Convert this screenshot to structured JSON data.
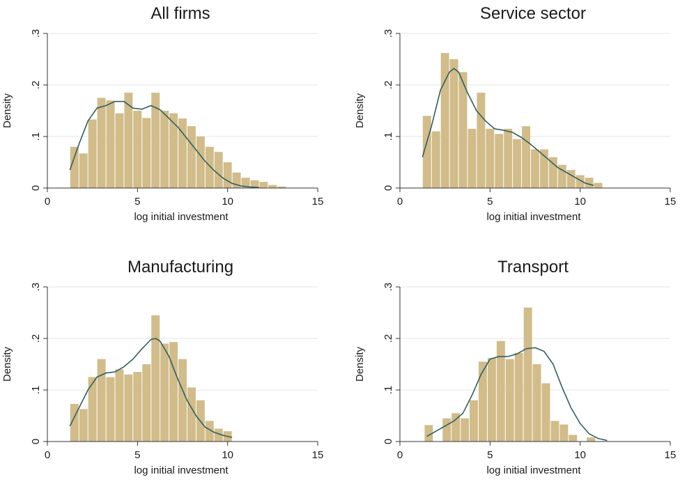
{
  "chart_data": [
    {
      "type": "bar",
      "title": "All firms",
      "xlabel": "log initial investment",
      "ylabel": "Density",
      "xlim": [
        0,
        15
      ],
      "ylim": [
        0,
        0.3
      ],
      "xticks": [
        "0",
        "5",
        "10",
        "15"
      ],
      "yticks": [
        "0",
        ".1",
        ".2",
        ".3"
      ],
      "grid": true,
      "bar_color": "#d1bc8a",
      "line_color": "#2f5f5f",
      "bins": {
        "start": 1.25,
        "width": 0.5,
        "values": [
          0.08,
          0.067,
          0.133,
          0.175,
          0.17,
          0.145,
          0.185,
          0.15,
          0.136,
          0.185,
          0.15,
          0.145,
          0.135,
          0.12,
          0.1,
          0.08,
          0.07,
          0.05,
          0.03,
          0.02,
          0.015,
          0.012,
          0.006,
          0.003
        ]
      },
      "kde": {
        "x": [
          1.25,
          1.75,
          2.25,
          2.75,
          3.25,
          3.75,
          4.25,
          4.75,
          5.25,
          5.75,
          6.25,
          6.75,
          7.25,
          7.75,
          8.25,
          8.75,
          9.25,
          9.75,
          10.25,
          10.75,
          11.25,
          11.75
        ],
        "y": [
          0.035,
          0.085,
          0.13,
          0.155,
          0.16,
          0.168,
          0.168,
          0.155,
          0.153,
          0.16,
          0.152,
          0.135,
          0.118,
          0.096,
          0.074,
          0.052,
          0.034,
          0.019,
          0.009,
          0.004,
          0.002,
          0.001
        ]
      }
    },
    {
      "type": "bar",
      "title": "Service sector",
      "xlabel": "log initial investment",
      "ylabel": "Density",
      "xlim": [
        0,
        15
      ],
      "ylim": [
        0,
        0.3
      ],
      "xticks": [
        "0",
        "5",
        "10",
        "15"
      ],
      "yticks": [
        "0",
        ".1",
        ".2",
        ".3"
      ],
      "grid": true,
      "bar_color": "#d1bc8a",
      "line_color": "#2f5f5f",
      "bins": {
        "start": 1.25,
        "width": 0.5,
        "values": [
          0.14,
          0.11,
          0.262,
          0.25,
          0.225,
          0.115,
          0.185,
          0.115,
          0.105,
          0.115,
          0.095,
          0.12,
          0.075,
          0.075,
          0.06,
          0.045,
          0.035,
          0.025,
          0.02,
          0.01
        ]
      },
      "kde": {
        "x": [
          1.25,
          1.75,
          2.25,
          2.75,
          3.0,
          3.25,
          3.75,
          4.25,
          4.75,
          5.25,
          5.75,
          6.25,
          6.75,
          7.25,
          7.75,
          8.25,
          8.75,
          9.25,
          9.75,
          10.25,
          10.75
        ],
        "y": [
          0.06,
          0.12,
          0.19,
          0.225,
          0.232,
          0.225,
          0.185,
          0.15,
          0.13,
          0.115,
          0.112,
          0.108,
          0.098,
          0.085,
          0.07,
          0.055,
          0.04,
          0.03,
          0.02,
          0.01,
          0.005
        ]
      }
    },
    {
      "type": "bar",
      "title": "Manufacturing",
      "xlabel": "log initial investment",
      "ylabel": "Density",
      "xlim": [
        0,
        15
      ],
      "ylim": [
        0,
        0.3
      ],
      "xticks": [
        "0",
        "5",
        "10",
        "15"
      ],
      "yticks": [
        "0",
        ".1",
        ".2",
        ".3"
      ],
      "grid": true,
      "bar_color": "#d1bc8a",
      "line_color": "#2f5f5f",
      "bins": {
        "start": 1.25,
        "width": 0.5,
        "values": [
          0.073,
          0.063,
          0.125,
          0.16,
          0.125,
          0.14,
          0.13,
          0.135,
          0.15,
          0.245,
          0.19,
          0.193,
          0.16,
          0.105,
          0.08,
          0.04,
          0.025,
          0.02
        ]
      },
      "kde": {
        "x": [
          1.25,
          1.75,
          2.25,
          2.75,
          3.25,
          3.75,
          4.25,
          4.75,
          5.25,
          5.75,
          6.0,
          6.25,
          6.75,
          7.25,
          7.75,
          8.25,
          8.75,
          9.25,
          9.75,
          10.25
        ],
        "y": [
          0.03,
          0.065,
          0.1,
          0.125,
          0.133,
          0.135,
          0.145,
          0.16,
          0.18,
          0.198,
          0.2,
          0.195,
          0.165,
          0.12,
          0.08,
          0.05,
          0.028,
          0.018,
          0.012,
          0.008
        ]
      }
    },
    {
      "type": "bar",
      "title": "Transport",
      "xlabel": "log initial investment",
      "ylabel": "Density",
      "xlim": [
        0,
        15
      ],
      "ylim": [
        0,
        0.3
      ],
      "xticks": [
        "0",
        "5",
        "10",
        "15"
      ],
      "yticks": [
        "0",
        ".1",
        ".2",
        ".3"
      ],
      "grid": true,
      "bar_color": "#d1bc8a",
      "line_color": "#2f5f5f",
      "bins": {
        "start": 1.35,
        "width": 0.5,
        "values": [
          0.032,
          0.0,
          0.045,
          0.055,
          0.045,
          0.08,
          0.155,
          0.162,
          0.195,
          0.16,
          0.172,
          0.26,
          0.15,
          0.113,
          0.04,
          0.033,
          0.013,
          0.0,
          0.008
        ]
      },
      "kde": {
        "x": [
          1.5,
          2.0,
          2.5,
          3.0,
          3.5,
          4.0,
          4.5,
          5.0,
          5.5,
          6.0,
          6.5,
          7.0,
          7.5,
          8.0,
          8.5,
          9.0,
          9.5,
          10.0,
          10.5,
          11.0,
          11.5
        ],
        "y": [
          0.01,
          0.02,
          0.03,
          0.04,
          0.055,
          0.09,
          0.13,
          0.16,
          0.165,
          0.165,
          0.17,
          0.18,
          0.182,
          0.175,
          0.15,
          0.105,
          0.065,
          0.035,
          0.015,
          0.006,
          0.002
        ]
      }
    }
  ]
}
